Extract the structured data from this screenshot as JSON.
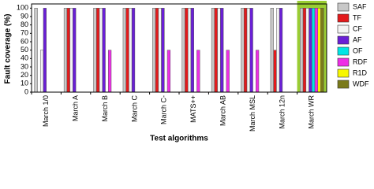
{
  "chart_data": {
    "type": "bar",
    "y_label": "Fault coverage (%)",
    "x_label": "Test algorithms",
    "categories": [
      "March 1/0",
      "March A",
      "March B",
      "March C",
      "March C-",
      "MATS++",
      "March AB",
      "March MSL",
      "March 12n",
      "March WR"
    ],
    "series": [
      {
        "name": "SAF",
        "color": "#c8c8c8",
        "values": [
          100,
          100,
          100,
          100,
          100,
          100,
          100,
          100,
          100,
          100
        ]
      },
      {
        "name": "TF",
        "color": "#e31a1c",
        "values": [
          0,
          100,
          100,
          100,
          100,
          100,
          100,
          100,
          50,
          100
        ]
      },
      {
        "name": "CF",
        "color": "#f4f4f4",
        "values": [
          50,
          100,
          100,
          100,
          100,
          100,
          100,
          100,
          100,
          100
        ]
      },
      {
        "name": "AF",
        "color": "#6a1fd6",
        "values": [
          100,
          100,
          100,
          100,
          100,
          100,
          100,
          100,
          100,
          100
        ]
      },
      {
        "name": "OF",
        "color": "#00e5e5",
        "values": [
          0,
          0,
          0,
          0,
          0,
          0,
          0,
          0,
          0,
          100
        ]
      },
      {
        "name": "RDF",
        "color": "#ee2ee6",
        "values": [
          0,
          0,
          50,
          0,
          50,
          50,
          50,
          50,
          0,
          100
        ]
      },
      {
        "name": "R1D",
        "color": "#f7f700",
        "values": [
          0,
          0,
          0,
          0,
          0,
          0,
          0,
          0,
          0,
          100
        ]
      },
      {
        "name": "WDF",
        "color": "#7a7a1a",
        "values": [
          0,
          0,
          0,
          0,
          0,
          0,
          0,
          0,
          0,
          100
        ]
      }
    ],
    "ylim": [
      0,
      105
    ],
    "yticks": [
      0,
      10,
      20,
      30,
      40,
      50,
      60,
      70,
      80,
      90,
      100
    ],
    "highlight_index": 9,
    "highlight_color": "#9acd32"
  }
}
